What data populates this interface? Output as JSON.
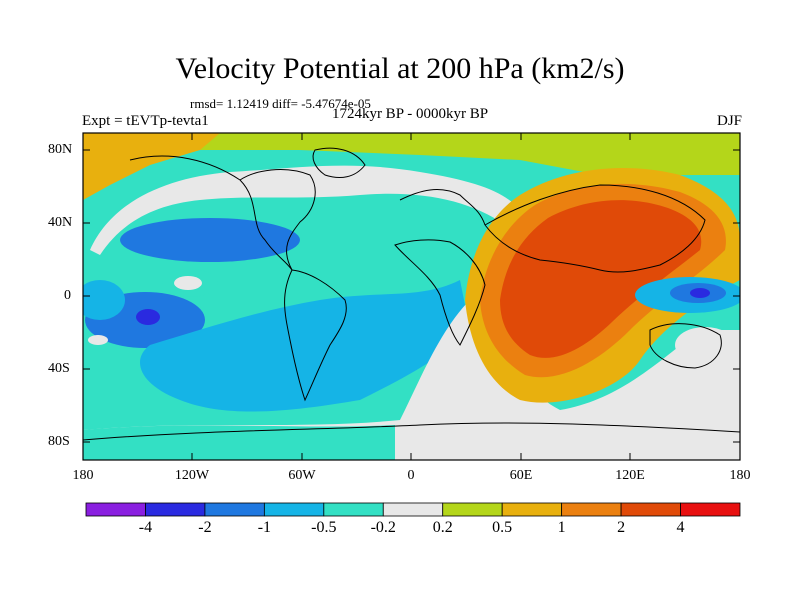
{
  "title": "Velocity Potential at 200 hPa (km2/s)",
  "stats": "rmsd= 1.12419 diff= -5.47674e-05",
  "period": "1724kyr BP - 0000kyr BP",
  "experiment": "Expt = tEVTp-tevta1",
  "season": "DJF",
  "lat_labels": [
    "80N",
    "40N",
    "0",
    "40S",
    "80S"
  ],
  "lon_labels": [
    "180",
    "120W",
    "60W",
    "0",
    "60E",
    "120E",
    "180"
  ],
  "colorbar": {
    "labels": [
      "-4",
      "-2",
      "-1",
      "-0.5",
      "-0.2",
      "0.2",
      "0.5",
      "1",
      "2",
      "4"
    ],
    "colors": [
      "#8a1fe0",
      "#2a2ae0",
      "#1f78e0",
      "#15b4e6",
      "#33e0c4",
      "#e8e8e8",
      "#b4d61a",
      "#e8b00e",
      "#eb8010",
      "#e04a08",
      "#e81010"
    ]
  },
  "palette": {
    "neg4": "#2a2ae0",
    "neg2": "#1f78e0",
    "neg1": "#15b4e6",
    "neg05": "#33e0c4",
    "zero": "#e8e8e8",
    "pos02": "#b4d61a",
    "pos05": "#e8b00e",
    "pos1": "#eb8010",
    "pos2": "#e04a08"
  }
}
